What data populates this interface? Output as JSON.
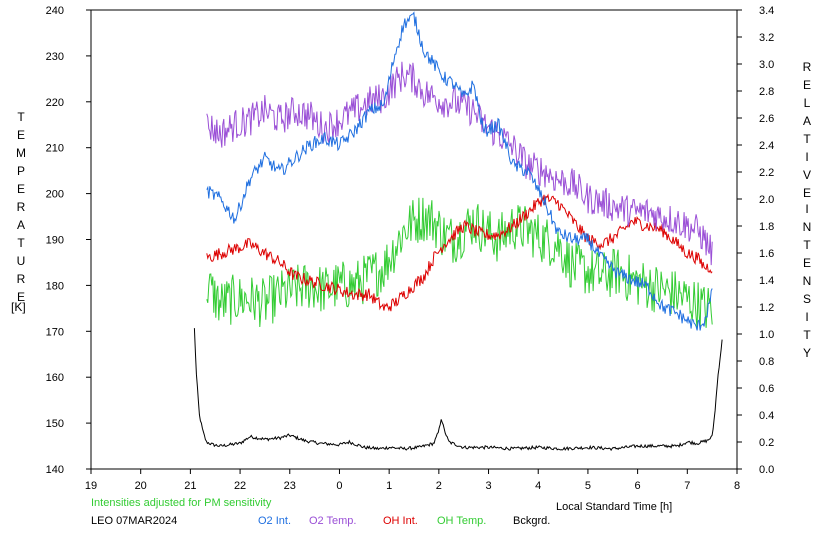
{
  "left_axis_label": [
    "T",
    "E",
    "M",
    "P",
    "E",
    "R",
    "A",
    "T",
    "U",
    "R",
    "E"
  ],
  "left_axis_unit": "[K]",
  "right_axis_label_1": [
    "R",
    "E",
    "L",
    "A",
    "T",
    "I",
    "V",
    "E"
  ],
  "right_axis_label_2": [
    "I",
    "N",
    "T",
    "E",
    "N",
    "S",
    "I",
    "T",
    "Y"
  ],
  "xlabel": "Local Standard Time [h]",
  "note": "Intensities adjusted for PM sensitivity",
  "station": "LEO 07MAR2024",
  "legend": {
    "o2int": "O2 Int.",
    "o2temp": "O2 Temp.",
    "ohint": "OH Int.",
    "ohtemp": "OH Temp.",
    "bckgrd": "Bckgrd."
  },
  "colors": {
    "o2int": "#1f6fe0",
    "o2temp": "#9a4fd6",
    "ohint": "#dd0000",
    "ohtemp": "#33cc33",
    "bckgrd": "#000000",
    "note": "#33cc33"
  },
  "chart_data": {
    "type": "line",
    "x_ticks": [
      "19",
      "20",
      "21",
      "22",
      "23",
      "0",
      "1",
      "2",
      "3",
      "4",
      "5",
      "6",
      "7",
      "8"
    ],
    "y_left_ticks": [
      "140",
      "150",
      "160",
      "170",
      "180",
      "190",
      "200",
      "210",
      "220",
      "230",
      "240"
    ],
    "y_right_ticks": [
      "0.0",
      "0.2",
      "0.4",
      "0.6",
      "0.8",
      "1.0",
      "1.2",
      "1.4",
      "1.6",
      "1.8",
      "2.0",
      "2.2",
      "2.4",
      "2.6",
      "2.8",
      "3.0",
      "3.2",
      "3.4"
    ],
    "xlim": [
      19,
      32
    ],
    "ylim_left": [
      140,
      240
    ],
    "ylim_right": [
      0.0,
      3.4
    ],
    "series": [
      {
        "name": "O2 Int.",
        "key": "o2int",
        "axis": "right",
        "noise": 0.05,
        "x": [
          21.33,
          21.6,
          21.9,
          22.2,
          22.5,
          22.8,
          23.1,
          23.4,
          23.7,
          24.0,
          24.3,
          24.6,
          24.9,
          25.1,
          25.3,
          25.5,
          25.7,
          25.9,
          26.1,
          26.3,
          26.5,
          26.7,
          26.9,
          27.2,
          27.5,
          27.8,
          28.1,
          28.4,
          28.7,
          29.0,
          29.3,
          29.6,
          29.9,
          30.2,
          30.5,
          30.8,
          31.0,
          31.2,
          31.35,
          31.5
        ],
        "y": [
          2.06,
          2.0,
          1.85,
          2.15,
          2.3,
          2.2,
          2.3,
          2.4,
          2.45,
          2.4,
          2.5,
          2.65,
          2.7,
          3.05,
          3.3,
          3.35,
          3.1,
          3.0,
          2.9,
          2.85,
          2.75,
          2.85,
          2.5,
          2.55,
          2.25,
          2.2,
          2.0,
          1.75,
          1.7,
          1.7,
          1.55,
          1.45,
          1.4,
          1.35,
          1.2,
          1.15,
          1.1,
          1.05,
          1.1,
          1.3
        ]
      },
      {
        "name": "O2 Temp.",
        "key": "o2temp",
        "axis": "left",
        "noise": 3.5,
        "x": [
          21.33,
          21.6,
          21.9,
          22.2,
          22.5,
          22.8,
          23.1,
          23.4,
          23.7,
          24.0,
          24.3,
          24.6,
          24.9,
          25.1,
          25.3,
          25.5,
          25.7,
          25.9,
          26.1,
          26.3,
          26.5,
          26.7,
          26.9,
          27.2,
          27.5,
          27.8,
          28.1,
          28.4,
          28.7,
          29.0,
          29.3,
          29.6,
          29.9,
          30.2,
          30.5,
          30.8,
          31.0,
          31.2,
          31.35,
          31.5
        ],
        "y": [
          215,
          213,
          215,
          216,
          218,
          216,
          218,
          217,
          214,
          216,
          218,
          220,
          221,
          224,
          226,
          225,
          222,
          221,
          220,
          220,
          219,
          218,
          215,
          213,
          210,
          206,
          205,
          203,
          202,
          199,
          198,
          197,
          196,
          196,
          195,
          194,
          193,
          192,
          190,
          187
        ]
      },
      {
        "name": "OH Int.",
        "key": "ohint",
        "axis": "left",
        "noise": 1.4,
        "x": [
          21.33,
          21.6,
          21.9,
          22.2,
          22.5,
          22.8,
          23.1,
          23.4,
          23.7,
          24.0,
          24.3,
          24.6,
          24.9,
          25.1,
          25.3,
          25.5,
          25.7,
          25.9,
          26.1,
          26.3,
          26.5,
          26.7,
          26.9,
          27.2,
          27.5,
          27.8,
          28.1,
          28.4,
          28.7,
          29.0,
          29.3,
          29.6,
          29.9,
          30.2,
          30.5,
          30.8,
          31.0,
          31.2,
          31.35,
          31.5
        ],
        "y": [
          186,
          187,
          188,
          189,
          187,
          185,
          182,
          181,
          180,
          179,
          178,
          178,
          175,
          176,
          178,
          180,
          182,
          186,
          189,
          191,
          193,
          192,
          191,
          191,
          193,
          196,
          199,
          198,
          194,
          190,
          189,
          191,
          194,
          193,
          192,
          189,
          187,
          186,
          184,
          184
        ]
      },
      {
        "name": "OH Temp.",
        "key": "ohtemp",
        "axis": "left",
        "noise": 5.5,
        "x": [
          21.33,
          21.6,
          21.9,
          22.2,
          22.5,
          22.8,
          23.1,
          23.4,
          23.7,
          24.0,
          24.3,
          24.6,
          24.9,
          25.1,
          25.3,
          25.5,
          25.7,
          25.9,
          26.1,
          26.3,
          26.5,
          26.7,
          26.9,
          27.2,
          27.5,
          27.8,
          28.1,
          28.4,
          28.7,
          29.0,
          29.3,
          29.6,
          29.9,
          30.2,
          30.5,
          30.8,
          31.0,
          31.2,
          31.35,
          31.5
        ],
        "y": [
          180,
          176,
          177,
          177,
          176,
          178,
          179,
          180,
          179,
          180,
          180,
          182,
          184,
          188,
          192,
          194,
          195,
          194,
          191,
          190,
          192,
          194,
          192,
          190,
          193,
          192,
          190,
          189,
          184,
          183,
          182,
          183,
          181,
          180,
          179,
          178,
          177,
          176,
          175,
          175
        ]
      },
      {
        "name": "Bckgrd.",
        "key": "bckgrd",
        "axis": "right",
        "noise": 0.012,
        "x": [
          21.08,
          21.12,
          21.18,
          21.25,
          21.32,
          21.45,
          21.6,
          21.8,
          22.0,
          22.2,
          22.5,
          22.8,
          23.0,
          23.3,
          23.6,
          24.0,
          24.2,
          24.5,
          24.8,
          25.0,
          25.3,
          25.6,
          25.9,
          26.0,
          26.05,
          26.1,
          26.2,
          26.5,
          27.0,
          27.5,
          28.0,
          28.5,
          29.0,
          29.5,
          30.0,
          30.5,
          30.8,
          31.0,
          31.2,
          31.4,
          31.5,
          31.55,
          31.62,
          31.7
        ],
        "y": [
          1.04,
          0.7,
          0.4,
          0.28,
          0.2,
          0.18,
          0.17,
          0.18,
          0.19,
          0.24,
          0.22,
          0.23,
          0.25,
          0.21,
          0.19,
          0.18,
          0.2,
          0.16,
          0.15,
          0.16,
          0.15,
          0.16,
          0.19,
          0.28,
          0.38,
          0.3,
          0.2,
          0.16,
          0.16,
          0.15,
          0.16,
          0.15,
          0.16,
          0.15,
          0.17,
          0.17,
          0.17,
          0.2,
          0.19,
          0.21,
          0.24,
          0.4,
          0.7,
          0.95
        ]
      }
    ]
  }
}
